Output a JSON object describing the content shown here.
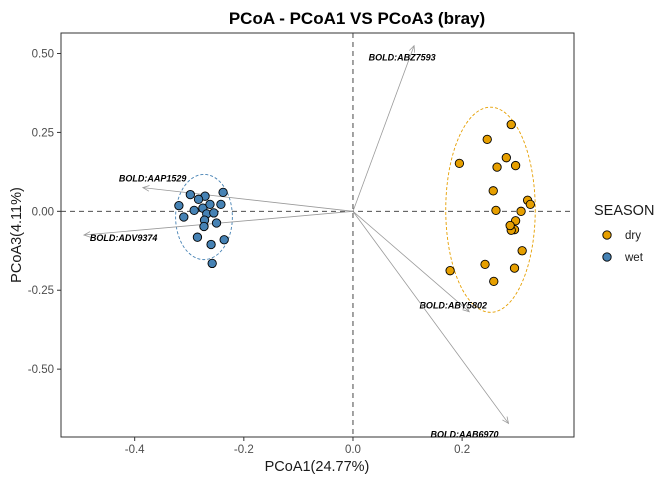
{
  "chart_data": {
    "type": "scatter",
    "title": "PCoA - PCoA1 VS PCoA3 (bray)",
    "xlabel": "PCoA1(24.77%)",
    "ylabel": "PCoA3(4.11%)",
    "xlim": [
      -0.535,
      0.405
    ],
    "ylim": [
      -0.715,
      0.565
    ],
    "x_ticks": [
      -0.4,
      -0.2,
      0.0,
      0.2
    ],
    "x_tick_labels": [
      "-0.4",
      "-0.2",
      "0.0",
      "0.2"
    ],
    "y_ticks": [
      -0.5,
      -0.25,
      0.0,
      0.25,
      0.5
    ],
    "y_tick_labels": [
      "-0.50",
      "-0.25",
      "0.00",
      "0.25",
      "0.50"
    ],
    "grid": false,
    "reference_lines": {
      "x": 0,
      "y": 0
    },
    "legend": {
      "title": "SEASON",
      "placement": "right",
      "entries": [
        "dry",
        "wet"
      ]
    },
    "series": [
      {
        "name": "dry",
        "color": "#E69F00",
        "points": [
          [
            0.29,
            0.275
          ],
          [
            0.246,
            0.228
          ],
          [
            0.195,
            0.152
          ],
          [
            0.281,
            0.17
          ],
          [
            0.298,
            0.145
          ],
          [
            0.264,
            0.14
          ],
          [
            0.257,
            0.065
          ],
          [
            0.32,
            0.035
          ],
          [
            0.325,
            0.022
          ],
          [
            0.262,
            0.003
          ],
          [
            0.308,
            0.0
          ],
          [
            0.298,
            -0.03
          ],
          [
            0.296,
            -0.058
          ],
          [
            0.29,
            -0.06
          ],
          [
            0.288,
            -0.045
          ],
          [
            0.31,
            -0.125
          ],
          [
            0.242,
            -0.168
          ],
          [
            0.296,
            -0.18
          ],
          [
            0.178,
            -0.188
          ],
          [
            0.258,
            -0.222
          ]
        ],
        "ellipse": {
          "cx": 0.252,
          "cy": 0.005,
          "rx": 0.082,
          "ry": 0.325
        }
      },
      {
        "name": "wet",
        "color": "#4682B4",
        "points": [
          [
            -0.298,
            0.053
          ],
          [
            -0.271,
            0.048
          ],
          [
            -0.238,
            0.06
          ],
          [
            -0.242,
            0.022
          ],
          [
            -0.283,
            0.038
          ],
          [
            -0.275,
            0.01
          ],
          [
            -0.319,
            0.018
          ],
          [
            -0.291,
            0.003
          ],
          [
            -0.262,
            0.022
          ],
          [
            -0.268,
            -0.008
          ],
          [
            -0.255,
            -0.005
          ],
          [
            -0.272,
            -0.028
          ],
          [
            -0.31,
            -0.018
          ],
          [
            -0.25,
            -0.037
          ],
          [
            -0.273,
            -0.048
          ],
          [
            -0.285,
            -0.082
          ],
          [
            -0.236,
            -0.09
          ],
          [
            -0.26,
            -0.105
          ],
          [
            -0.258,
            -0.165
          ]
        ],
        "ellipse": {
          "cx": -0.273,
          "cy": -0.018,
          "rx": 0.052,
          "ry": 0.135
        }
      }
    ],
    "vectors": [
      {
        "label": "BOLD:ABZ7593",
        "x": 0.112,
        "y": 0.525
      },
      {
        "label": "BOLD:AAP1529",
        "x": -0.385,
        "y": 0.075
      },
      {
        "label": "BOLD:ADV9374",
        "x": -0.493,
        "y": -0.075
      },
      {
        "label": "BOLD:ABY5802",
        "x": 0.213,
        "y": -0.318
      },
      {
        "label": "BOLD:AAB6970",
        "x": 0.285,
        "y": -0.672
      }
    ]
  }
}
